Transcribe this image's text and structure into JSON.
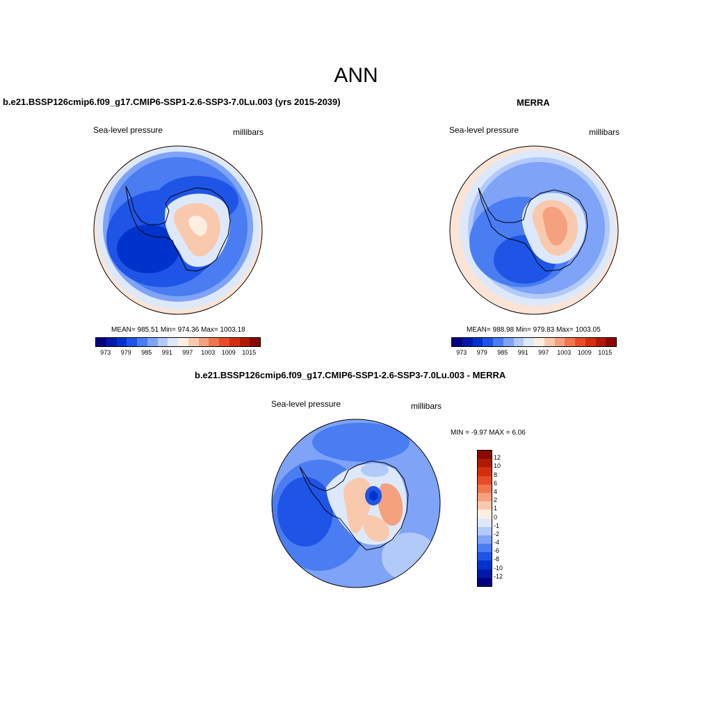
{
  "title": "ANN",
  "panels": {
    "left": {
      "heading": "b.e21.BSSP126cmip6.f09_g17.CMIP6-SSP1-2.6-SSP3-7.0Lu.003 (yrs 2015-2039)",
      "variable": "Sea-level pressure",
      "units": "millibars",
      "stats": "MEAN= 985.51  Min= 974.36  Max= 1003.18"
    },
    "right": {
      "heading": "MERRA",
      "variable": "Sea-level pressure",
      "units": "millibars",
      "stats": "MEAN= 988.98  Min= 979.83  Max= 1003.05"
    },
    "diff": {
      "heading": "b.e21.BSSP126cmip6.f09_g17.CMIP6-SSP1-2.6-SSP3-7.0Lu.003 - MERRA",
      "variable": "Sea-level pressure",
      "units": "millibars",
      "stats": "MIN =  -9.97 MAX =   6.06"
    }
  },
  "colorbar_abs": {
    "colors": [
      "#00007f",
      "#0019a8",
      "#0033cc",
      "#1f55e6",
      "#4a7cf2",
      "#7ea3f7",
      "#b2caf9",
      "#dde9fb",
      "#fdeee2",
      "#f9c9ad",
      "#f5a07f",
      "#f17650",
      "#e84c28",
      "#d22e10",
      "#b01a05",
      "#8a0a00"
    ],
    "labels": [
      "973",
      "979",
      "985",
      "991",
      "997",
      "1003",
      "1009",
      "1015"
    ]
  },
  "colorbar_diff": {
    "colors": [
      "#8a0a00",
      "#b01a05",
      "#d22e10",
      "#e84c28",
      "#f17650",
      "#f5a07f",
      "#f9c9ad",
      "#fdeee2",
      "#dde9fb",
      "#b2caf9",
      "#7ea3f7",
      "#4a7cf2",
      "#1f55e6",
      "#0033cc",
      "#0019a8",
      "#00007f"
    ],
    "labels": [
      "12",
      "10",
      "8",
      "6",
      "4",
      "2",
      "1",
      "0",
      "-1",
      "-2",
      "-4",
      "-6",
      "-8",
      "-10",
      "-12"
    ]
  }
}
